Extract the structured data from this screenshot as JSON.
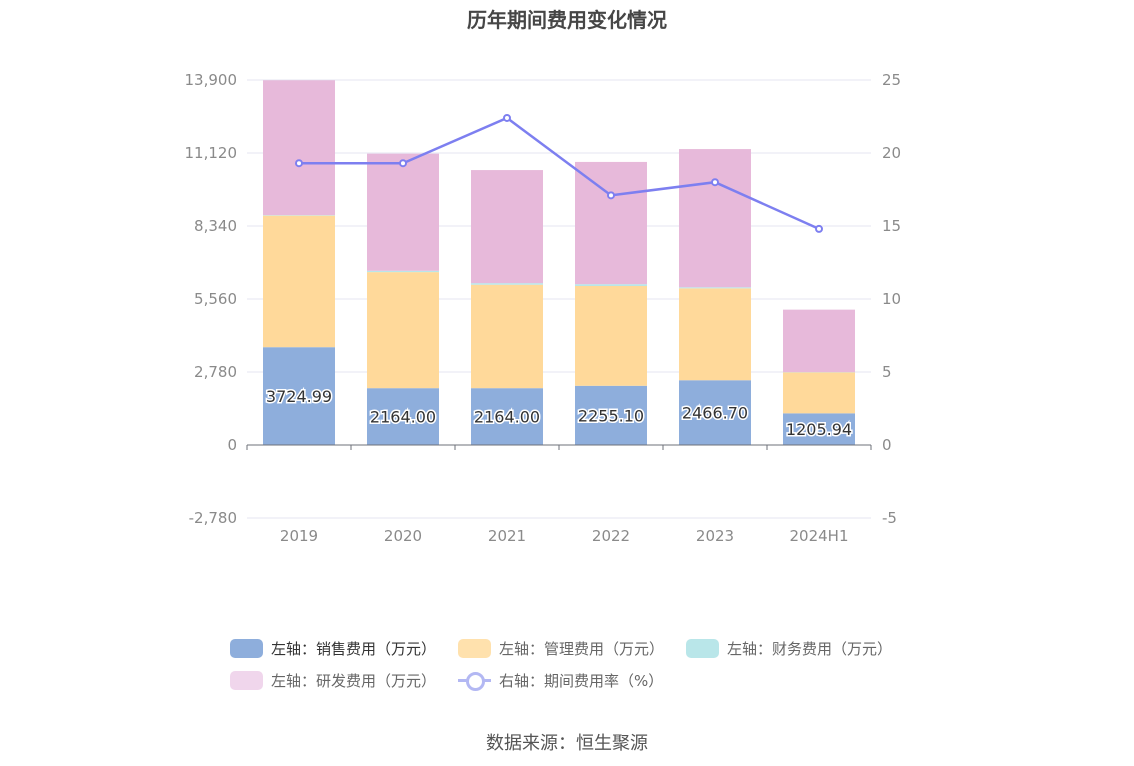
{
  "title": "历年期间费用变化情况",
  "source": "数据来源：恒生聚源",
  "legend": [
    {
      "label": "左轴：销售费用（万元）",
      "color": "#8eaedc"
    },
    {
      "label": "左轴：管理费用（万元）",
      "color": "#ffe1ad"
    },
    {
      "label": "左轴：财务费用（万元）",
      "color": "#b9e6e9"
    },
    {
      "label": "左轴：研发费用（万元）",
      "color": "#f0d6ec"
    },
    {
      "label": "右轴：期间费用率（%）",
      "color": "#b3b8f3"
    }
  ],
  "chart_data": {
    "type": "bar",
    "title": "历年期间费用变化情况",
    "categories": [
      "2019",
      "2020",
      "2021",
      "2022",
      "2023",
      "2024H1"
    ],
    "left_axis": {
      "ticks": [
        "-2,780",
        "0",
        "2,780",
        "5,560",
        "8,340",
        "11,120",
        "13,900"
      ],
      "ylim": [
        -2780,
        13900
      ]
    },
    "right_axis": {
      "ticks": [
        "-5",
        "0",
        "5",
        "10",
        "15",
        "20",
        "25"
      ],
      "ylim": [
        -5,
        25
      ]
    },
    "series": [
      {
        "name": "左轴：销售费用（万元）",
        "type": "bar",
        "stack": true,
        "color": "#8eaedc",
        "values": [
          3724.99,
          2164.0,
          2164.0,
          2255.1,
          2466.7,
          1205.94
        ],
        "labels": [
          "3724.99",
          "2164.00",
          "2164.00",
          "2255.10",
          "2466.70",
          "1205.94"
        ]
      },
      {
        "name": "左轴：管理费用（万元）",
        "type": "bar",
        "stack": true,
        "color": "#ffd99a",
        "values": [
          5010,
          4420,
          3940,
          3800,
          3500,
          1560
        ]
      },
      {
        "name": "左轴：财务费用（万元）",
        "type": "bar",
        "stack": true,
        "color": "#b9e6e9",
        "values": [
          20,
          50,
          60,
          70,
          40,
          10
        ]
      },
      {
        "name": "左轴：研发费用（万元）",
        "type": "bar",
        "stack": true,
        "color": "#e7b9da",
        "values": [
          5135,
          4461,
          4306,
          4655,
          5263,
          2379
        ]
      },
      {
        "name": "右轴：期间费用率（%）",
        "type": "line",
        "axis": "right",
        "color": "#7d7ff0",
        "values": [
          19.3,
          19.3,
          22.4,
          17.1,
          18.0,
          14.8
        ]
      }
    ],
    "grid": true,
    "legend_position": "bottom"
  }
}
